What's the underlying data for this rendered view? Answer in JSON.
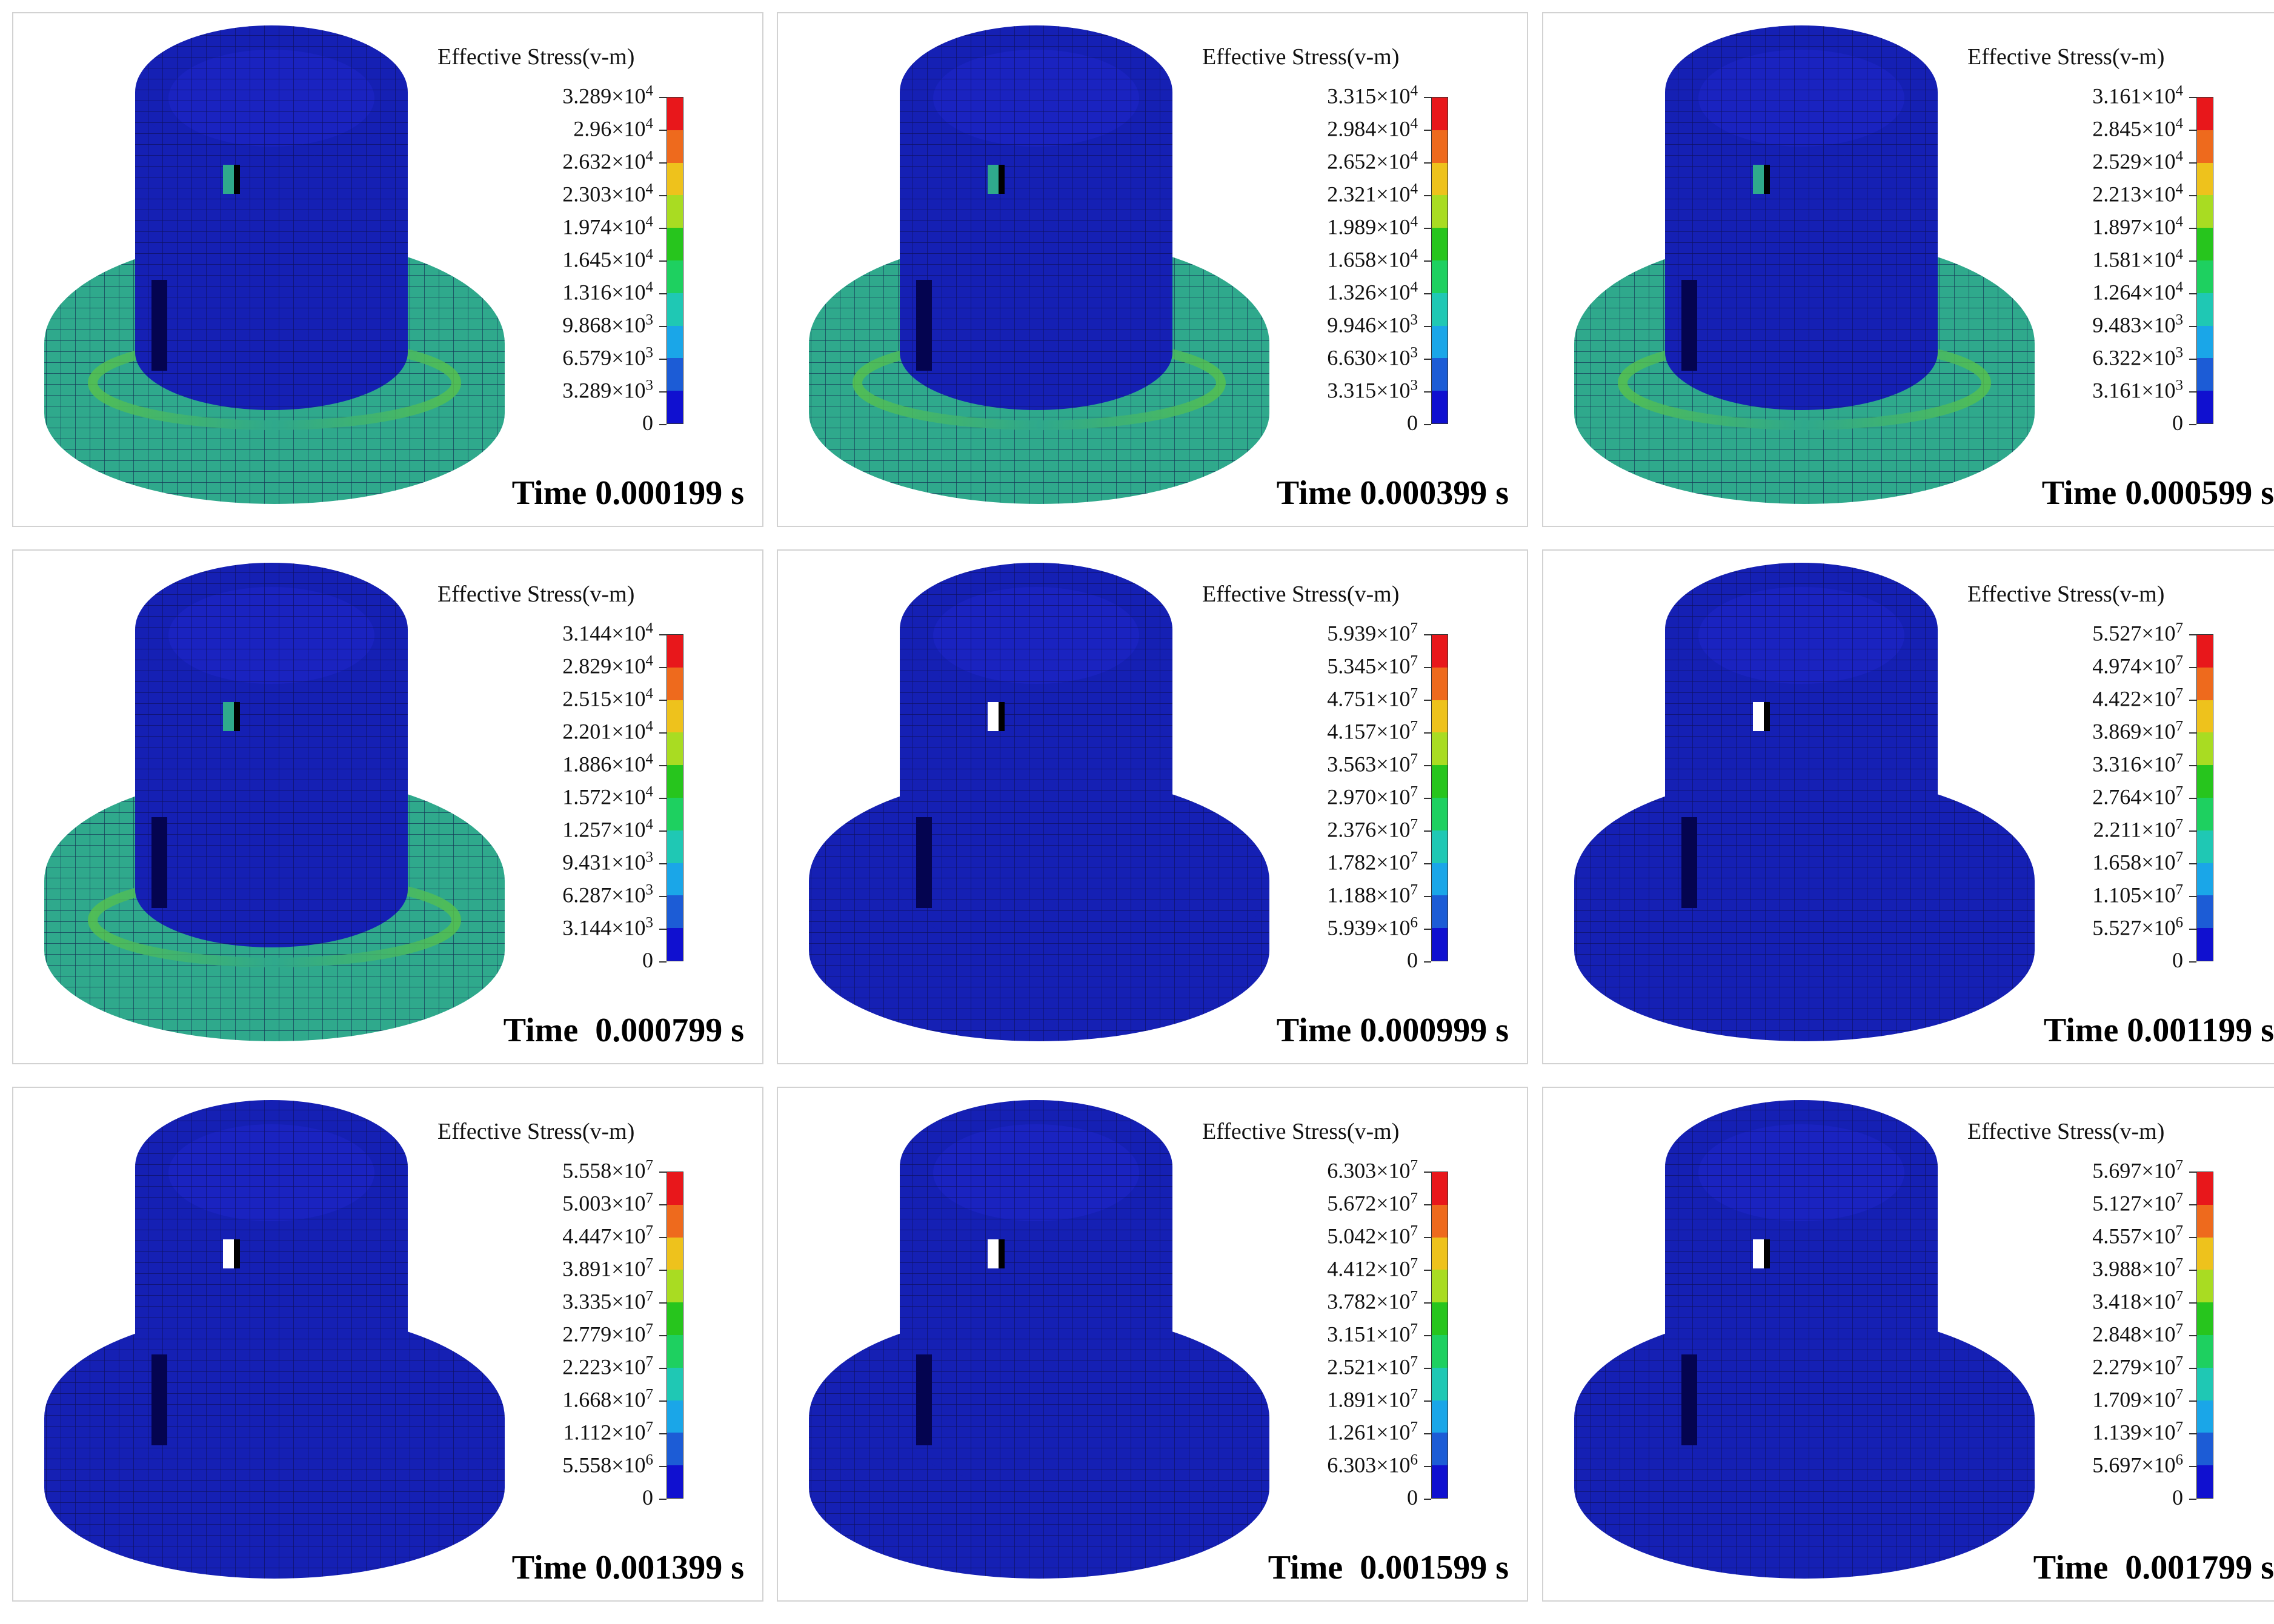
{
  "panels": [
    {
      "legend_title": "Effective Stress(v-m)",
      "ticks": [
        [
          "3.289",
          4
        ],
        [
          "2.96",
          4
        ],
        [
          "2.632",
          4
        ],
        [
          "2.303",
          4
        ],
        [
          "1.974",
          4
        ],
        [
          "1.645",
          4
        ],
        [
          "1.316",
          4
        ],
        [
          "9.868",
          3
        ],
        [
          "6.579",
          3
        ],
        [
          "3.289",
          3
        ],
        [
          "0",
          null
        ]
      ],
      "time": "Time 0.000199 s",
      "stress_look": "high"
    },
    {
      "legend_title": "Effective Stress(v-m)",
      "ticks": [
        [
          "3.315",
          4
        ],
        [
          "2.984",
          4
        ],
        [
          "2.652",
          4
        ],
        [
          "2.321",
          4
        ],
        [
          "1.989",
          4
        ],
        [
          "1.658",
          4
        ],
        [
          "1.326",
          4
        ],
        [
          "9.946",
          3
        ],
        [
          "6.630",
          3
        ],
        [
          "3.315",
          3
        ],
        [
          "0",
          null
        ]
      ],
      "time": "Time 0.000399 s",
      "stress_look": "high"
    },
    {
      "legend_title": "Effective Stress(v-m)",
      "ticks": [
        [
          "3.161",
          4
        ],
        [
          "2.845",
          4
        ],
        [
          "2.529",
          4
        ],
        [
          "2.213",
          4
        ],
        [
          "1.897",
          4
        ],
        [
          "1.581",
          4
        ],
        [
          "1.264",
          4
        ],
        [
          "9.483",
          3
        ],
        [
          "6.322",
          3
        ],
        [
          "3.161",
          3
        ],
        [
          "0",
          null
        ]
      ],
      "time": "Time 0.000599 s",
      "stress_look": "high"
    },
    {
      "legend_title": "Effective Stress(v-m)",
      "ticks": [
        [
          "3.144",
          4
        ],
        [
          "2.829",
          4
        ],
        [
          "2.515",
          4
        ],
        [
          "2.201",
          4
        ],
        [
          "1.886",
          4
        ],
        [
          "1.572",
          4
        ],
        [
          "1.257",
          4
        ],
        [
          "9.431",
          3
        ],
        [
          "6.287",
          3
        ],
        [
          "3.144",
          3
        ],
        [
          "0",
          null
        ]
      ],
      "time": "Time  0.000799 s",
      "stress_look": "high"
    },
    {
      "legend_title": "Effective Stress(v-m)",
      "ticks": [
        [
          "5.939",
          7
        ],
        [
          "5.345",
          7
        ],
        [
          "4.751",
          7
        ],
        [
          "4.157",
          7
        ],
        [
          "3.563",
          7
        ],
        [
          "2.970",
          7
        ],
        [
          "2.376",
          7
        ],
        [
          "1.782",
          7
        ],
        [
          "1.188",
          7
        ],
        [
          "5.939",
          6
        ],
        [
          "0",
          null
        ]
      ],
      "time": "Time 0.000999 s",
      "stress_look": "low"
    },
    {
      "legend_title": "Effective Stress(v-m)",
      "ticks": [
        [
          "5.527",
          7
        ],
        [
          "4.974",
          7
        ],
        [
          "4.422",
          7
        ],
        [
          "3.869",
          7
        ],
        [
          "3.316",
          7
        ],
        [
          "2.764",
          7
        ],
        [
          "2.211",
          7
        ],
        [
          "1.658",
          7
        ],
        [
          "1.105",
          7
        ],
        [
          "5.527",
          6
        ],
        [
          "0",
          null
        ]
      ],
      "time": "Time 0.001199 s",
      "stress_look": "low"
    },
    {
      "legend_title": "Effective Stress(v-m)",
      "ticks": [
        [
          "5.558",
          7
        ],
        [
          "5.003",
          7
        ],
        [
          "4.447",
          7
        ],
        [
          "3.891",
          7
        ],
        [
          "3.335",
          7
        ],
        [
          "2.779",
          7
        ],
        [
          "2.223",
          7
        ],
        [
          "1.668",
          7
        ],
        [
          "1.112",
          7
        ],
        [
          "5.558",
          6
        ],
        [
          "0",
          null
        ]
      ],
      "time": "Time 0.001399 s",
      "stress_look": "low"
    },
    {
      "legend_title": "Effective Stress(v-m)",
      "ticks": [
        [
          "6.303",
          7
        ],
        [
          "5.672",
          7
        ],
        [
          "5.042",
          7
        ],
        [
          "4.412",
          7
        ],
        [
          "3.782",
          7
        ],
        [
          "3.151",
          7
        ],
        [
          "2.521",
          7
        ],
        [
          "1.891",
          7
        ],
        [
          "1.261",
          7
        ],
        [
          "6.303",
          6
        ],
        [
          "0",
          null
        ]
      ],
      "time": "Time  0.001599 s",
      "stress_look": "low"
    },
    {
      "legend_title": "Effective Stress(v-m)",
      "ticks": [
        [
          "5.697",
          7
        ],
        [
          "5.127",
          7
        ],
        [
          "4.557",
          7
        ],
        [
          "3.988",
          7
        ],
        [
          "3.418",
          7
        ],
        [
          "2.848",
          7
        ],
        [
          "2.279",
          7
        ],
        [
          "1.709",
          7
        ],
        [
          "1.139",
          7
        ],
        [
          "5.697",
          6
        ],
        [
          "0",
          null
        ]
      ],
      "time": "Time  0.001799 s",
      "stress_look": "low"
    }
  ],
  "colorbar_colors": [
    "#e8171b",
    "#ee6a1d",
    "#eec21c",
    "#a9dc22",
    "#27c51d",
    "#1ed060",
    "#1fc8b4",
    "#1aa6e8",
    "#1c5cd6",
    "#1010d0"
  ],
  "mesh_colors": {
    "dark_blue": "#1520b4",
    "teal_green": "#2fa98c",
    "light_green": "#58c24a",
    "edge": "#0a0a40"
  }
}
